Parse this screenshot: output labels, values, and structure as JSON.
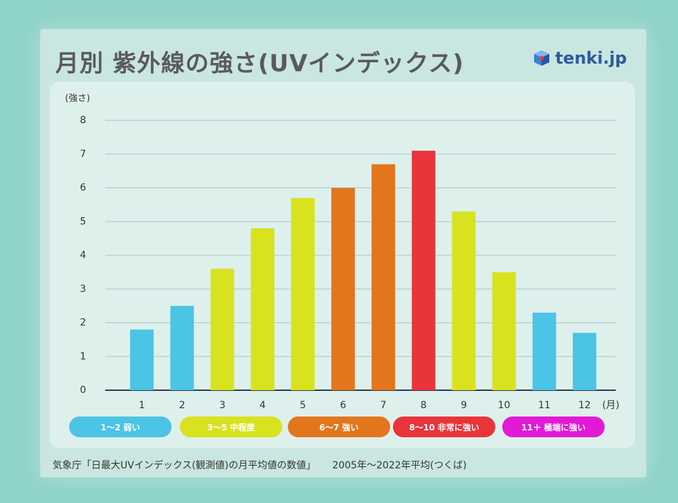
{
  "header": {
    "title": "月別 紫外線の強さ(UVインデックス)",
    "logo_text": "tenki.jp"
  },
  "chart_data": {
    "type": "bar",
    "title": "月別 紫外線の強さ(UVインデックス)",
    "ylabel": "(強さ)",
    "xlabel": "(月)",
    "ylim": [
      0,
      8
    ],
    "yticks": [
      "0",
      "1",
      "2",
      "3",
      "4",
      "5",
      "6",
      "7",
      "8"
    ],
    "categories": [
      "1",
      "2",
      "3",
      "4",
      "5",
      "6",
      "7",
      "8",
      "9",
      "10",
      "11",
      "12"
    ],
    "values": [
      1.8,
      2.5,
      3.6,
      4.8,
      5.7,
      6.0,
      6.7,
      7.1,
      5.3,
      3.5,
      2.3,
      1.7
    ],
    "colors": [
      "#4cc4e6",
      "#4cc4e6",
      "#d8e21f",
      "#d8e21f",
      "#d8e21f",
      "#e3761c",
      "#e3761c",
      "#e8343a",
      "#d8e21f",
      "#d8e21f",
      "#4cc4e6",
      "#4cc4e6"
    ],
    "legend": [
      {
        "label": "1〜2 弱い",
        "color": "#4cc4e6"
      },
      {
        "label": "3〜5 中程度",
        "color": "#d8e21f"
      },
      {
        "label": "6〜7 強い",
        "color": "#e3761c"
      },
      {
        "label": "8〜10 非常に強い",
        "color": "#e8343a"
      },
      {
        "label": "11＋ 極端に強い",
        "color": "#e21ad6"
      }
    ]
  },
  "footer": {
    "source": "気象庁「日最大UVインデックス(観測値)の月平均値の数値」",
    "period": "2005年〜2022年平均(つくば)"
  }
}
